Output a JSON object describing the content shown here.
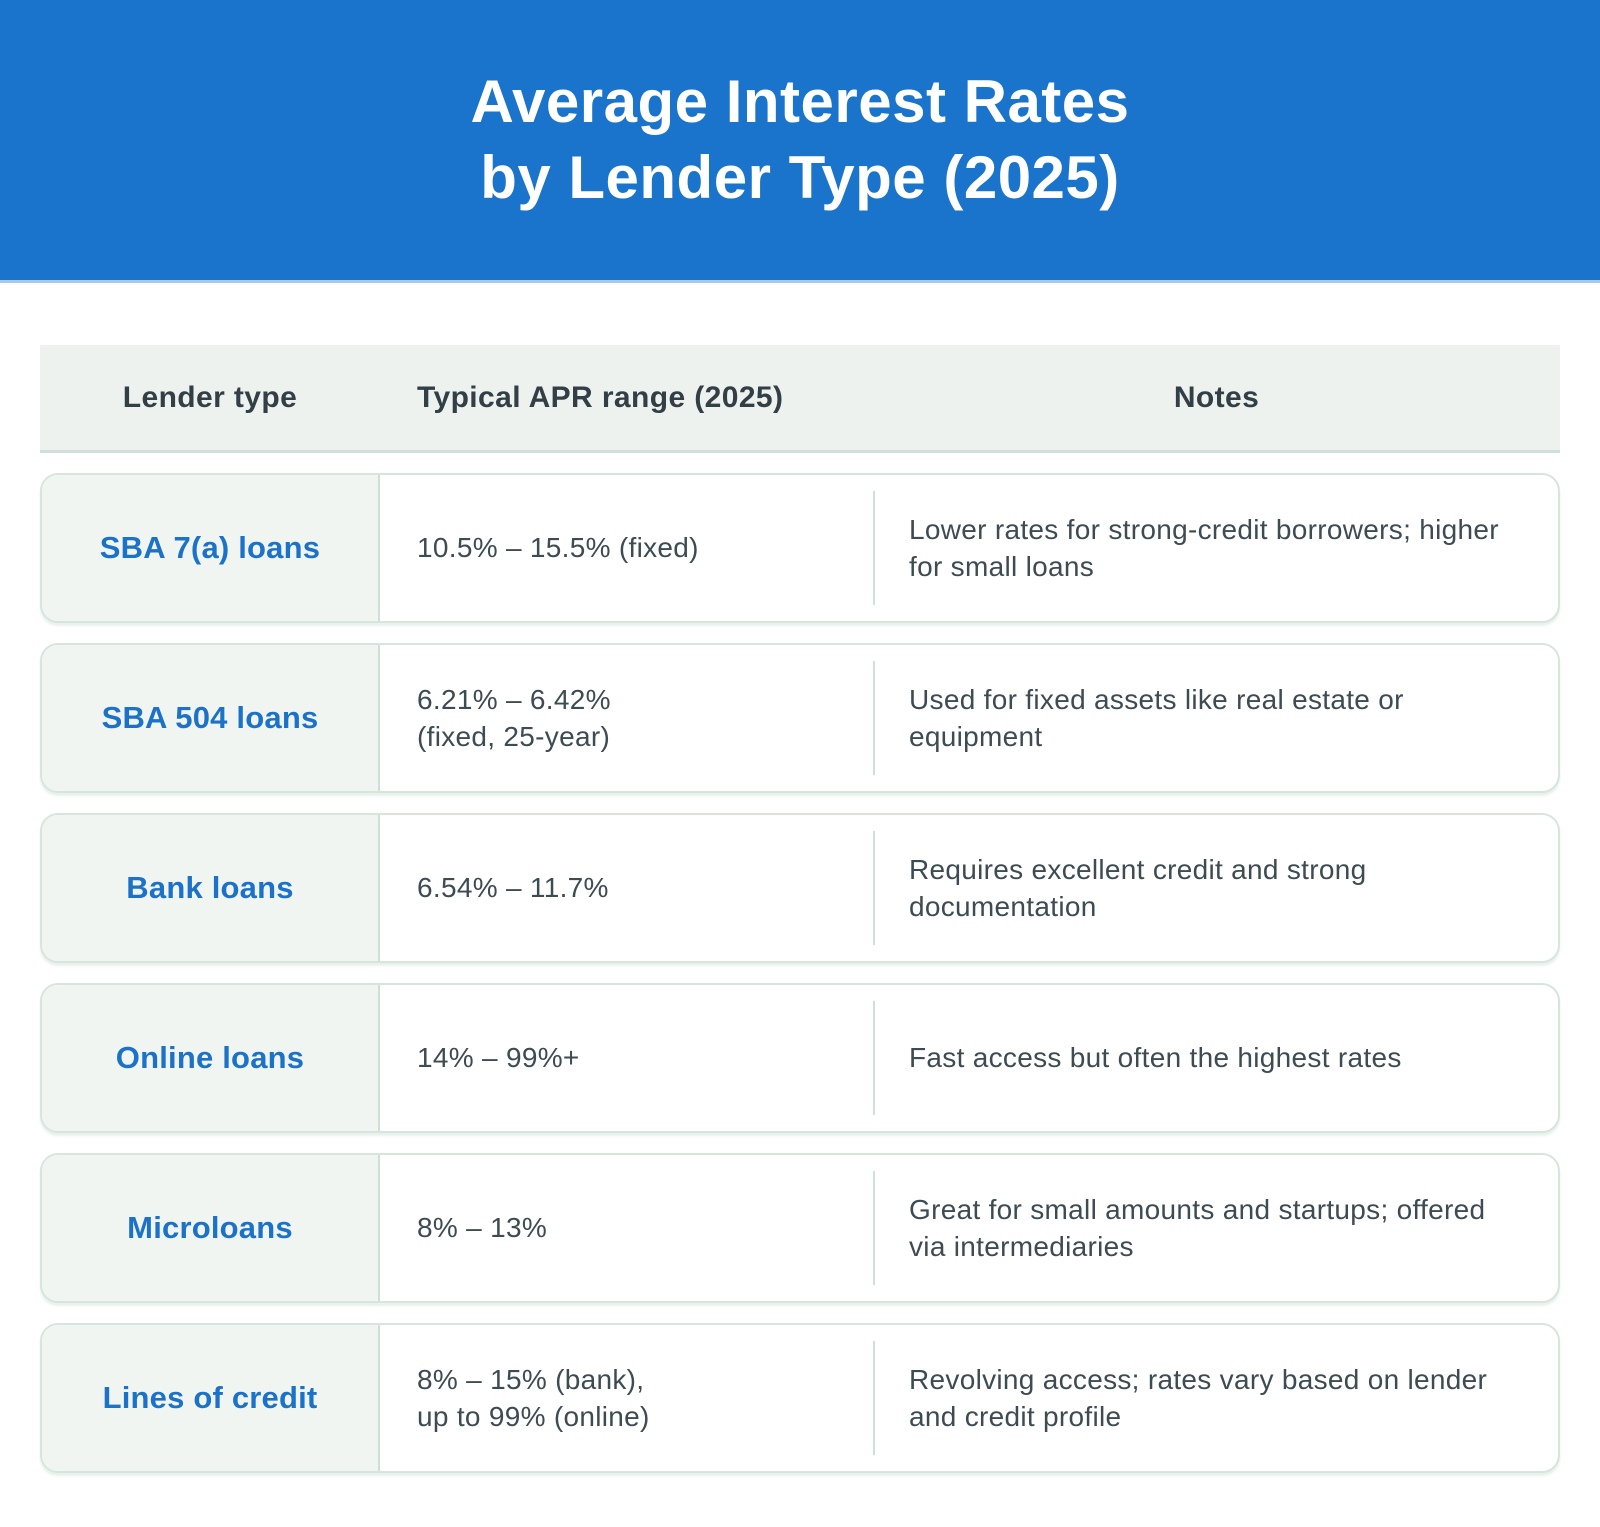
{
  "banner": {
    "title_line1": "Average Interest Rates",
    "title_line2": "by Lender Type (2025)"
  },
  "chart_data": {
    "type": "table",
    "title": "Average Interest Rates by Lender Type (2025)",
    "columns": [
      "Lender type",
      "Typical APR range (2025)",
      "Notes"
    ],
    "rows": [
      [
        "SBA 7(a) loans",
        "10.5% – 15.5% (fixed)",
        "Lower rates for strong-credit borrowers; higher for small loans"
      ],
      [
        "SBA 504 loans",
        "6.21% – 6.42%\n(fixed, 25-year)",
        "Used for fixed assets like real estate or equipment"
      ],
      [
        "Bank loans",
        "6.54% – 11.7%",
        "Requires excellent credit and strong documentation"
      ],
      [
        "Online loans",
        "14% – 99%+",
        "Fast access but often the highest rates"
      ],
      [
        "Microloans",
        "8% – 13%",
        "Great for small amounts and startups; offered via intermediaries"
      ],
      [
        "Lines of credit",
        "8% – 15% (bank),\nup to 99% (online)",
        "Revolving access; rates vary based on lender and credit profile"
      ]
    ],
    "legend": "none",
    "grid": "off"
  },
  "theme": {
    "banner_bg": "#1B74CB",
    "banner_edge": "#A6C9EC",
    "banner_text": "#FFFFFF",
    "accent_blue": "#1B72C8",
    "row_border": "#D7E5DC",
    "divider": "#CFE0D6",
    "cell_bg": "#F0F5F2",
    "header_bg": "#EDF2EF",
    "body_text": "#3D4B52",
    "heading_text": "#333F47",
    "page_bg": "#FFFFFF"
  }
}
